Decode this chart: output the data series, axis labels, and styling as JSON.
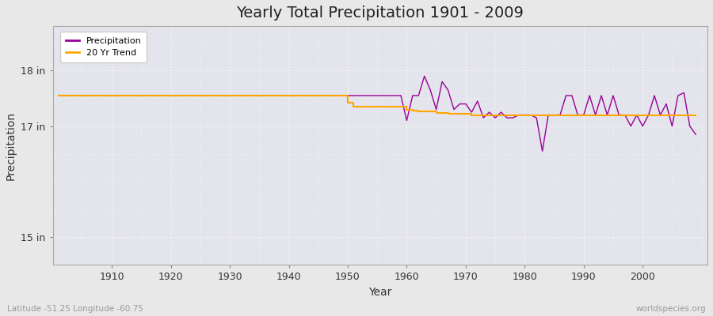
{
  "title": "Yearly Total Precipitation 1901 - 2009",
  "xlabel": "Year",
  "ylabel": "Precipitation",
  "y_ticks_labels": [
    "15 in",
    "17 in",
    "18 in"
  ],
  "y_ticks_values": [
    15,
    17,
    18
  ],
  "ylim": [
    14.5,
    18.8
  ],
  "xlim": [
    1900,
    2011
  ],
  "x_ticks": [
    1910,
    1920,
    1930,
    1940,
    1950,
    1960,
    1970,
    1980,
    1990,
    2000
  ],
  "bg_color": "#e8e8e8",
  "plot_bg_color": "#e4e4ec",
  "grid_color": "#ffffff",
  "precip_color": "#990099",
  "trend_color": "#ffa500",
  "footer_left": "Latitude -51.25 Longitude -60.75",
  "footer_right": "worldspecies.org",
  "years": [
    1901,
    1902,
    1903,
    1904,
    1905,
    1906,
    1907,
    1908,
    1909,
    1910,
    1911,
    1912,
    1913,
    1914,
    1915,
    1916,
    1917,
    1918,
    1919,
    1920,
    1921,
    1922,
    1923,
    1924,
    1925,
    1926,
    1927,
    1928,
    1929,
    1930,
    1931,
    1932,
    1933,
    1934,
    1935,
    1936,
    1937,
    1938,
    1939,
    1940,
    1941,
    1942,
    1943,
    1944,
    1945,
    1946,
    1947,
    1948,
    1949,
    1950,
    1951,
    1952,
    1953,
    1954,
    1955,
    1956,
    1957,
    1958,
    1959,
    1960,
    1961,
    1962,
    1963,
    1964,
    1965,
    1966,
    1967,
    1968,
    1969,
    1970,
    1971,
    1972,
    1973,
    1974,
    1975,
    1976,
    1977,
    1978,
    1979,
    1980,
    1981,
    1982,
    1983,
    1984,
    1985,
    1986,
    1987,
    1988,
    1989,
    1990,
    1991,
    1992,
    1993,
    1994,
    1995,
    1996,
    1997,
    1998,
    1999,
    2000,
    2001,
    2002,
    2003,
    2004,
    2005,
    2006,
    2007,
    2008,
    2009
  ],
  "precip": [
    17.55,
    17.55,
    17.55,
    17.55,
    17.55,
    17.55,
    17.55,
    17.55,
    17.55,
    17.55,
    17.55,
    17.55,
    17.55,
    17.55,
    17.55,
    17.55,
    17.55,
    17.55,
    17.55,
    17.55,
    17.55,
    17.55,
    17.55,
    17.55,
    17.55,
    17.55,
    17.55,
    17.55,
    17.55,
    17.55,
    17.55,
    17.55,
    17.55,
    17.55,
    17.55,
    17.55,
    17.55,
    17.55,
    17.55,
    17.55,
    17.55,
    17.55,
    17.55,
    17.55,
    17.55,
    17.55,
    17.55,
    17.55,
    17.55,
    17.55,
    17.55,
    17.55,
    17.55,
    17.55,
    17.55,
    17.55,
    17.55,
    17.55,
    17.55,
    17.1,
    17.55,
    17.55,
    17.9,
    17.65,
    17.3,
    17.8,
    17.65,
    17.3,
    17.4,
    17.4,
    17.25,
    17.45,
    17.15,
    17.25,
    17.15,
    17.25,
    17.15,
    17.15,
    17.2,
    17.2,
    17.2,
    17.15,
    16.55,
    17.2,
    17.2,
    17.2,
    17.55,
    17.55,
    17.2,
    17.2,
    17.55,
    17.2,
    17.55,
    17.2,
    17.55,
    17.2,
    17.2,
    17.0,
    17.2,
    17.0,
    17.2,
    17.55,
    17.2,
    17.4,
    17.0,
    17.55,
    17.6,
    17.0,
    16.85
  ],
  "trend": [
    17.55,
    17.55,
    17.55,
    17.55,
    17.55,
    17.55,
    17.55,
    17.55,
    17.55,
    17.55,
    17.55,
    17.55,
    17.55,
    17.55,
    17.55,
    17.55,
    17.55,
    17.55,
    17.55,
    17.55,
    17.55,
    17.55,
    17.55,
    17.55,
    17.55,
    17.55,
    17.55,
    17.55,
    17.55,
    17.55,
    17.55,
    17.55,
    17.55,
    17.55,
    17.55,
    17.55,
    17.55,
    17.55,
    17.55,
    17.55,
    17.55,
    17.55,
    17.55,
    17.55,
    17.55,
    17.55,
    17.55,
    17.55,
    17.55,
    17.42,
    17.35,
    17.35,
    17.35,
    17.35,
    17.35,
    17.35,
    17.35,
    17.35,
    17.35,
    17.3,
    17.28,
    17.26,
    17.26,
    17.26,
    17.24,
    17.24,
    17.22,
    17.22,
    17.22,
    17.22,
    17.2,
    17.2,
    17.2,
    17.2,
    17.2,
    17.2,
    17.2,
    17.2,
    17.2,
    17.2,
    17.2,
    17.2,
    17.2,
    17.2,
    17.2,
    17.2,
    17.2,
    17.2,
    17.2,
    17.2,
    17.2,
    17.2,
    17.2,
    17.2,
    17.2,
    17.2,
    17.2,
    17.2,
    17.2,
    17.2,
    17.2,
    17.2,
    17.2,
    17.2,
    17.2,
    17.2,
    17.2,
    17.2,
    17.2
  ]
}
